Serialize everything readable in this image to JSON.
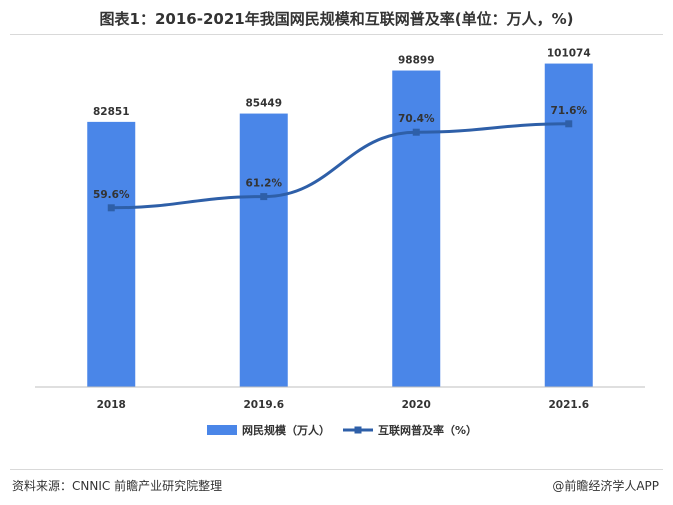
{
  "title": "图表1：2016-2021年我国网民规模和互联网普及率(单位：万人，%)",
  "chart_data": {
    "type": "bar",
    "categories": [
      "2018",
      "2019.6",
      "2020",
      "2021.6"
    ],
    "series": [
      {
        "name": "网民规模（万人）",
        "type": "bar",
        "values": [
          82851,
          85449,
          98899,
          101074
        ],
        "color": "#4a86e8"
      },
      {
        "name": "互联网普及率（%）",
        "type": "line",
        "values": [
          59.6,
          61.2,
          70.4,
          71.6
        ],
        "labels": [
          "59.6%",
          "61.2%",
          "70.4%",
          "71.6%"
        ],
        "color": "#2e5fa8"
      }
    ],
    "legend": "bottom-center",
    "grid": false
  },
  "footer": {
    "source": "资料来源：CNNIC 前瞻产业研究院整理",
    "brand": "@前瞻经济学人APP"
  }
}
